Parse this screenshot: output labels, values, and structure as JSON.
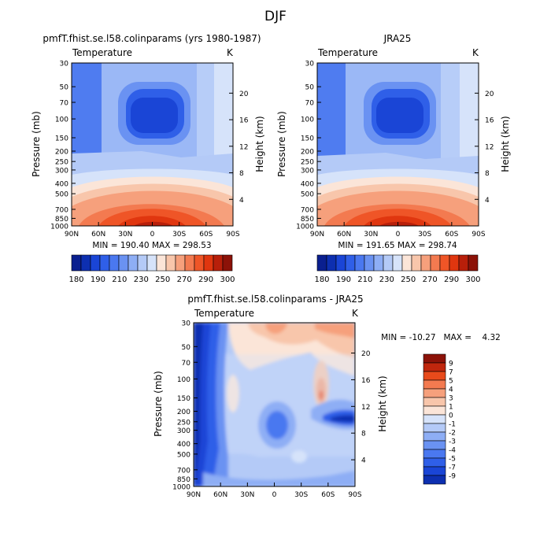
{
  "page": {
    "title": "DJF"
  },
  "chart_data": [
    {
      "type": "heatmap",
      "title": "pmfT.fhist.se.l58.colinparams (yrs 1980-1987)",
      "subtitle_left": "Temperature",
      "units": "K",
      "x_ticks": [
        "90N",
        "60N",
        "30N",
        "0",
        "30S",
        "60S",
        "90S"
      ],
      "y_ticks": [
        "30",
        "50",
        "70",
        "100",
        "150",
        "200",
        "250",
        "300",
        "400",
        "500",
        "700",
        "850",
        "1000"
      ],
      "ylabel": "Pressure (mb)",
      "y2_ticks": [
        "20",
        "16",
        "12",
        "8",
        "4"
      ],
      "y2label": "Height (km)",
      "min_max": "MIN = 190.40   MAX = 298.53",
      "min": 190.4,
      "max": 298.53
    },
    {
      "type": "heatmap",
      "title": "JRA25",
      "subtitle_left": "Temperature",
      "units": "K",
      "x_ticks": [
        "90N",
        "60N",
        "30N",
        "0",
        "30S",
        "60S",
        "90S"
      ],
      "y_ticks": [
        "30",
        "50",
        "70",
        "100",
        "150",
        "200",
        "250",
        "300",
        "400",
        "500",
        "700",
        "850",
        "1000"
      ],
      "ylabel": "Pressure (mb)",
      "y2_ticks": [
        "20",
        "16",
        "12",
        "8",
        "4"
      ],
      "y2label": "Height (km)",
      "min_max": "MIN = 191.65   MAX = 298.74",
      "min": 191.65,
      "max": 298.74
    },
    {
      "type": "heatmap",
      "title": "pmfT.fhist.se.l58.colinparams - JRA25",
      "subtitle_left": "Temperature",
      "units": "K",
      "x_ticks": [
        "90N",
        "60N",
        "30N",
        "0",
        "30S",
        "60S",
        "90S"
      ],
      "y_ticks": [
        "30",
        "50",
        "70",
        "100",
        "150",
        "200",
        "250",
        "300",
        "400",
        "500",
        "700",
        "850",
        "1000"
      ],
      "ylabel": "Pressure (mb)",
      "y2_ticks": [
        "20",
        "16",
        "12",
        "8",
        "4"
      ],
      "y2label": "Height (km)",
      "min_max": "MIN = -10.27   MAX =    4.32",
      "min": -10.27,
      "max": 4.32
    }
  ],
  "abs_colorbar": {
    "labels": [
      "180",
      "190",
      "210",
      "230",
      "250",
      "270",
      "290",
      "300"
    ],
    "colors": [
      "#0a1f8f",
      "#0d2fb0",
      "#1a45d6",
      "#2f5fe8",
      "#4a78f0",
      "#6a92f2",
      "#8eaef5",
      "#b4caf7",
      "#d6e3fa",
      "#fbe5d8",
      "#f8c6ab",
      "#f6a07c",
      "#f37a50",
      "#ef5527",
      "#e0360f",
      "#b81f0a",
      "#8c1208"
    ]
  },
  "diff_colorbar": {
    "labels": [
      "9",
      "7",
      "5",
      "4",
      "3",
      "1",
      "0",
      "-1",
      "-2",
      "-3",
      "-4",
      "-5",
      "-7",
      "-9"
    ],
    "colors": [
      "#8c1208",
      "#c0260d",
      "#e84a1b",
      "#f37a50",
      "#f6a07c",
      "#f8c6ab",
      "#fbe5d8",
      "#d6e3fa",
      "#b4caf7",
      "#8eaef5",
      "#6a92f2",
      "#4a78f0",
      "#2f5fe8",
      "#1a45d6",
      "#0d2fb0"
    ]
  }
}
